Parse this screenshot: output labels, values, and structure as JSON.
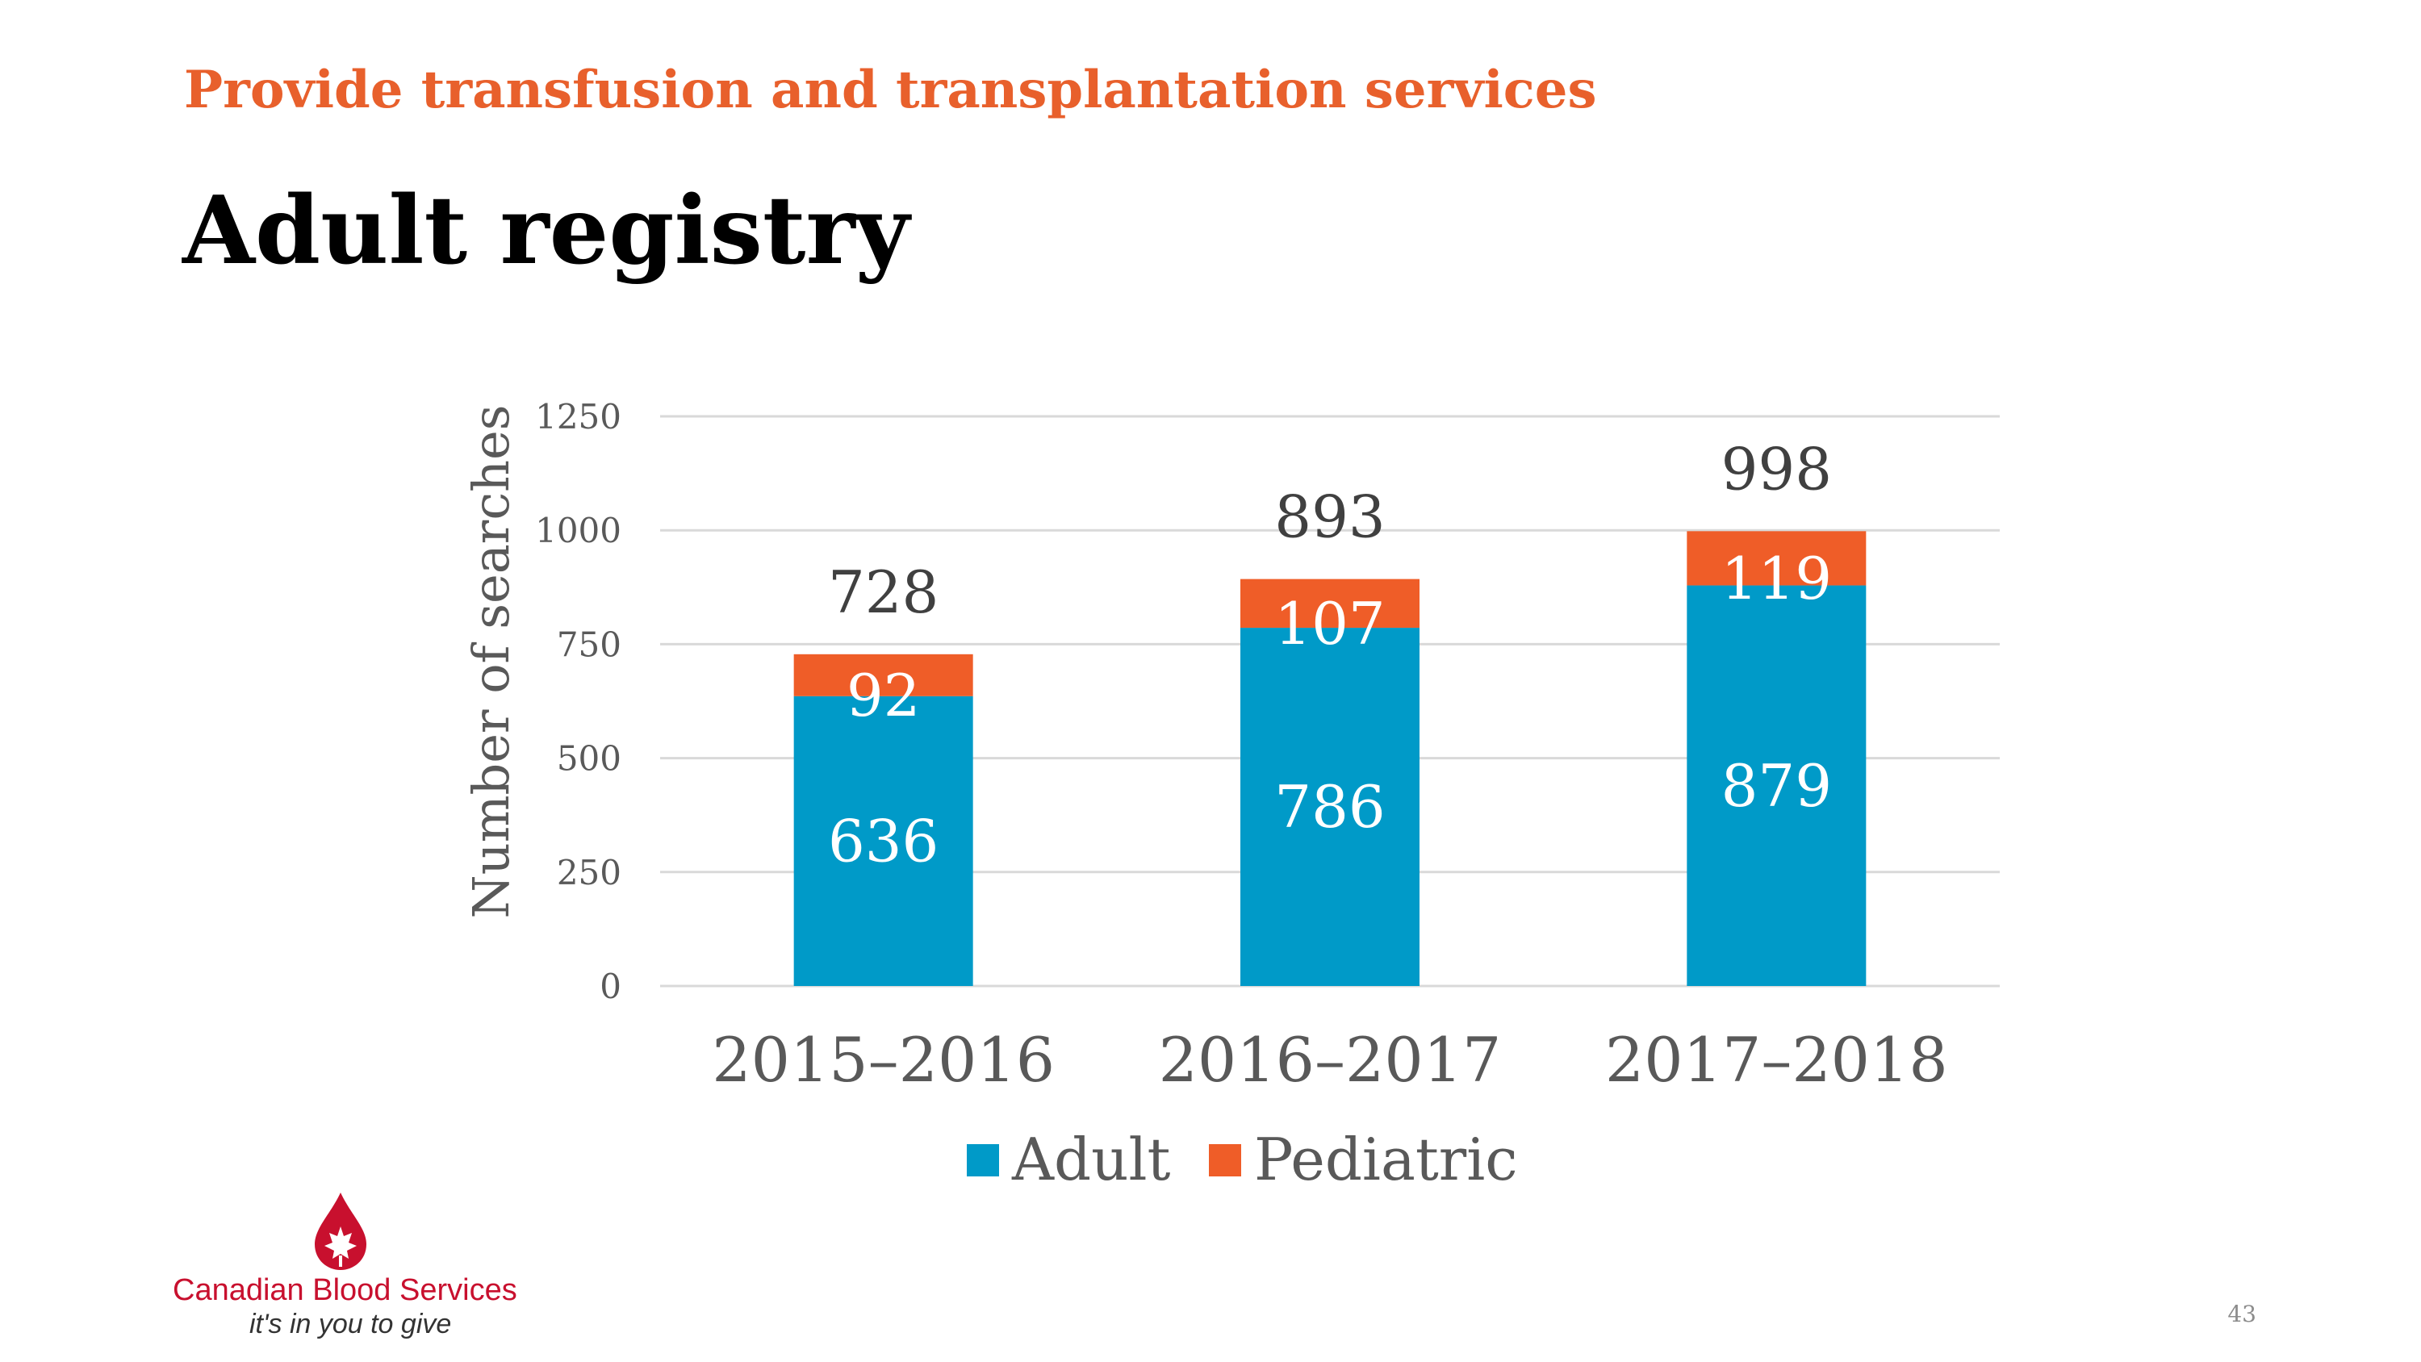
{
  "slide": {
    "section_heading": "Provide transfusion and transplantation services",
    "title": "Adult registry",
    "page_number": "43"
  },
  "logo": {
    "name": "Canadian Blood Services",
    "tagline": "it's in you to give",
    "icon": "blood-drop-maple-leaf-icon"
  },
  "colors": {
    "adult": "#009ac8",
    "pediatric": "#ef5d28",
    "accent": "#e8602c",
    "gridline": "#d9d9d9"
  },
  "chart_data": {
    "type": "bar",
    "stacked": true,
    "categories": [
      "2015–2016",
      "2016–2017",
      "2017–2018"
    ],
    "series": [
      {
        "name": "Adult",
        "values": [
          636,
          786,
          879
        ]
      },
      {
        "name": "Pediatric",
        "values": [
          92,
          107,
          119
        ]
      }
    ],
    "totals": [
      728,
      893,
      998
    ],
    "xlabel": "",
    "ylabel": "Number of searches",
    "ylim": [
      0,
      1250
    ],
    "yticks": [
      0,
      250,
      500,
      750,
      1000,
      1250
    ],
    "grid": true,
    "legend": "bottom"
  }
}
